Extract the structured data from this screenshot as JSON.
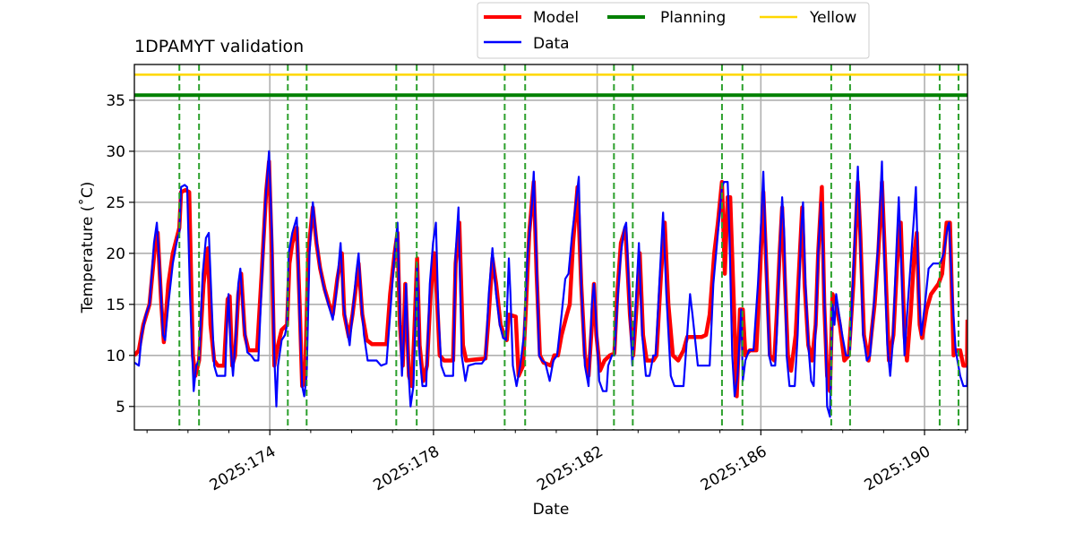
{
  "chart_data": {
    "type": "line",
    "title": "1DPAMYT validation",
    "xlabel": "Date",
    "ylabel": "Temperature ($^\\circ$C)",
    "ylabel_display": "Temperature (˚C)",
    "xlim": [
      170.69,
      191.05
    ],
    "ylim": [
      2.7,
      38.5
    ],
    "x_major_ticks": [
      174,
      178,
      182,
      186,
      190
    ],
    "x_tick_labels": [
      "2025:174",
      "2025:178",
      "2025:182",
      "2025:186",
      "2025:190"
    ],
    "x_minor_ticks": [
      171,
      172,
      173,
      175,
      176,
      177,
      179,
      180,
      181,
      183,
      184,
      185,
      187,
      188,
      189,
      191
    ],
    "y_ticks": [
      5,
      10,
      15,
      20,
      25,
      30,
      35
    ],
    "y_tick_labels": [
      "5",
      "10",
      "15",
      "20",
      "25",
      "30",
      "35"
    ],
    "grid": true,
    "legend": {
      "placement": "top-center-outside",
      "entries": [
        {
          "label": "Model",
          "color": "#ff0000"
        },
        {
          "label": "Planning",
          "color": "#008000"
        },
        {
          "label": "Yellow",
          "color": "#ffd700"
        },
        {
          "label": "Data",
          "color": "#0000ff"
        }
      ]
    },
    "hlines": [
      {
        "name": "Planning",
        "value": 35.5,
        "color": "#008000"
      },
      {
        "name": "Yellow",
        "value": 37.5,
        "color": "#ffd700"
      }
    ],
    "vlines": {
      "color": "#2ca02c",
      "values": [
        171.79,
        172.27,
        174.44,
        174.9,
        177.09,
        177.59,
        179.74,
        180.24,
        182.41,
        182.87,
        185.05,
        185.55,
        187.72,
        188.18,
        190.37,
        190.83
      ]
    },
    "series": [
      {
        "name": "Model",
        "color": "#ff0000",
        "x": [
          170.69,
          170.8,
          170.91,
          171.06,
          171.19,
          171.26,
          171.35,
          171.41,
          171.52,
          171.63,
          171.79,
          171.83,
          171.94,
          172.03,
          172.12,
          172.18,
          172.27,
          172.38,
          172.49,
          172.55,
          172.64,
          172.73,
          172.88,
          172.97,
          173.02,
          173.08,
          173.15,
          173.23,
          173.3,
          173.39,
          173.48,
          173.69,
          173.8,
          173.91,
          173.98,
          174.05,
          174.11,
          174.2,
          174.29,
          174.42,
          174.48,
          174.55,
          174.66,
          174.73,
          174.79,
          174.86,
          174.94,
          175.05,
          175.14,
          175.23,
          175.34,
          175.45,
          175.54,
          175.65,
          175.76,
          175.82,
          175.93,
          176.02,
          176.13,
          176.17,
          176.26,
          176.37,
          176.5,
          176.85,
          176.94,
          177.05,
          177.12,
          177.18,
          177.25,
          177.31,
          177.4,
          177.47,
          177.53,
          177.6,
          177.66,
          177.75,
          177.84,
          177.93,
          178.02,
          178.08,
          178.15,
          178.26,
          178.48,
          178.54,
          178.63,
          178.72,
          178.8,
          179.02,
          179.27,
          179.35,
          179.44,
          179.53,
          179.64,
          179.73,
          179.79,
          179.84,
          180.01,
          180.08,
          180.19,
          180.25,
          180.34,
          180.45,
          180.52,
          180.6,
          180.69,
          180.87,
          180.95,
          181.04,
          181.13,
          181.26,
          181.33,
          181.41,
          181.52,
          181.61,
          181.7,
          181.79,
          181.87,
          181.92,
          181.98,
          182.07,
          182.18,
          182.31,
          182.42,
          182.49,
          182.58,
          182.69,
          182.8,
          182.88,
          182.95,
          183.04,
          183.12,
          183.21,
          183.37,
          183.45,
          183.56,
          183.65,
          183.74,
          183.85,
          183.98,
          184.11,
          184.2,
          184.46,
          184.55,
          184.66,
          184.75,
          184.86,
          184.95,
          185.05,
          185.12,
          185.19,
          185.25,
          185.34,
          185.41,
          185.49,
          185.56,
          185.62,
          185.73,
          185.89,
          185.98,
          186.06,
          186.13,
          186.22,
          186.33,
          186.39,
          186.46,
          186.52,
          186.59,
          186.66,
          186.74,
          186.85,
          186.94,
          187.01,
          187.07,
          187.16,
          187.25,
          187.34,
          187.4,
          187.49,
          187.55,
          187.62,
          187.69,
          187.75,
          187.84,
          187.93,
          188.04,
          188.15,
          188.26,
          188.37,
          188.43,
          188.52,
          188.63,
          188.78,
          188.87,
          188.96,
          189.05,
          189.13,
          189.24,
          189.33,
          189.42,
          189.51,
          189.57,
          189.66,
          189.75,
          189.81,
          189.88,
          189.94,
          190.05,
          190.16,
          190.34,
          190.43,
          190.54,
          190.62,
          190.71,
          190.78,
          190.87,
          190.95,
          191.04,
          191.05
        ],
        "y": [
          10,
          10.5,
          13,
          15,
          20.5,
          22,
          15,
          11.3,
          17,
          20,
          22.5,
          26,
          26.2,
          26,
          10,
          8,
          9.5,
          17,
          20.5,
          13,
          9.5,
          9,
          9,
          15.5,
          15.8,
          9,
          10,
          16,
          18,
          12,
          10.5,
          10.5,
          18,
          26,
          29,
          20,
          9,
          11,
          12.5,
          13,
          19,
          21,
          22.5,
          15,
          7,
          7.5,
          20,
          24.5,
          21,
          18.5,
          16.5,
          15,
          14,
          17.5,
          20,
          14,
          11.8,
          14,
          17.5,
          19,
          14,
          11.5,
          11.1,
          11.1,
          16,
          20,
          22,
          13,
          9,
          17,
          8,
          7,
          12,
          19.5,
          11,
          7.5,
          9,
          16,
          20,
          16,
          10,
          9.5,
          9.5,
          19,
          23,
          11,
          9.5,
          9.6,
          9.7,
          14,
          19.5,
          17,
          13,
          12,
          11.5,
          14,
          13.8,
          8,
          9,
          14,
          22,
          27,
          18,
          10,
          9.3,
          9,
          10,
          10,
          12,
          14,
          15,
          21,
          26.5,
          17,
          10,
          8,
          13,
          17,
          12,
          8.5,
          9.5,
          10,
          10.2,
          16,
          21,
          22.5,
          14,
          10,
          14,
          20,
          12,
          9.5,
          9.5,
          10,
          18,
          23,
          15,
          10,
          9.5,
          10.5,
          11.8,
          11.8,
          11.8,
          12,
          14,
          20,
          23,
          27,
          18,
          25.5,
          25.5,
          15,
          6,
          14.5,
          14.5,
          10,
          10.5,
          10.5,
          18,
          26,
          19,
          10,
          9.5,
          14,
          20,
          24.5,
          17,
          10,
          8.5,
          12,
          19,
          24.5,
          17,
          11,
          9.5,
          13,
          20,
          26.5,
          15,
          8,
          6.5,
          16,
          15,
          13,
          9.5,
          10,
          17,
          27,
          22,
          12,
          9.5,
          15,
          20,
          27,
          18,
          9.5,
          12,
          19,
          23,
          12,
          9.5,
          14,
          20,
          22,
          13,
          11.7,
          14.5,
          16,
          17,
          18,
          23,
          23,
          10,
          10.5,
          10.5,
          9,
          9,
          13.5
        ]
      },
      {
        "name": "Data",
        "color": "#0000ff",
        "x": [
          170.69,
          170.8,
          170.87,
          170.97,
          171.06,
          171.17,
          171.24,
          171.3,
          171.39,
          171.44,
          171.52,
          171.63,
          171.74,
          171.79,
          171.83,
          171.92,
          171.98,
          172.05,
          172.14,
          172.2,
          172.27,
          172.36,
          172.44,
          172.51,
          172.58,
          172.64,
          172.71,
          172.84,
          172.91,
          172.95,
          172.99,
          173.04,
          173.1,
          173.17,
          173.23,
          173.28,
          173.37,
          173.45,
          173.54,
          173.63,
          173.72,
          173.8,
          173.89,
          173.98,
          174.05,
          174.11,
          174.16,
          174.2,
          174.29,
          174.37,
          174.42,
          174.46,
          174.55,
          174.66,
          174.73,
          174.79,
          174.84,
          174.9,
          174.97,
          175.05,
          175.12,
          175.21,
          175.3,
          175.43,
          175.54,
          175.62,
          175.73,
          175.8,
          175.89,
          175.95,
          176.02,
          176.11,
          176.17,
          176.24,
          176.3,
          176.39,
          176.61,
          176.72,
          176.85,
          176.94,
          177.03,
          177.12,
          177.18,
          177.23,
          177.29,
          177.33,
          177.38,
          177.44,
          177.51,
          177.6,
          177.66,
          177.73,
          177.82,
          177.91,
          177.99,
          178.06,
          178.12,
          178.19,
          178.28,
          178.48,
          178.54,
          178.61,
          178.69,
          178.78,
          178.85,
          179.02,
          179.18,
          179.27,
          179.35,
          179.44,
          179.53,
          179.62,
          179.7,
          179.77,
          179.84,
          179.88,
          179.94,
          180.03,
          180.12,
          180.21,
          180.3,
          180.41,
          180.45,
          180.52,
          180.58,
          180.65,
          180.73,
          180.84,
          180.93,
          181.02,
          181.13,
          181.22,
          181.3,
          181.39,
          181.48,
          181.55,
          181.61,
          181.7,
          181.79,
          181.87,
          181.92,
          181.98,
          182.05,
          182.14,
          182.23,
          182.27,
          182.36,
          182.42,
          182.49,
          182.58,
          182.66,
          182.71,
          182.8,
          182.86,
          182.93,
          183.02,
          183.1,
          183.19,
          183.28,
          183.37,
          183.43,
          183.52,
          183.61,
          183.69,
          183.8,
          183.89,
          184.11,
          184.2,
          184.27,
          184.33,
          184.46,
          184.66,
          184.75,
          184.84,
          184.95,
          185.05,
          185.1,
          185.19,
          185.23,
          185.3,
          185.36,
          185.43,
          185.52,
          185.56,
          185.62,
          185.71,
          185.82,
          185.93,
          186.02,
          186.06,
          186.13,
          186.2,
          186.26,
          186.35,
          186.39,
          186.46,
          186.52,
          186.57,
          186.63,
          186.7,
          186.83,
          186.9,
          186.98,
          187.03,
          187.09,
          187.16,
          187.23,
          187.29,
          187.36,
          187.4,
          187.47,
          187.51,
          187.58,
          187.62,
          187.69,
          187.75,
          187.8,
          187.84,
          187.91,
          187.99,
          188.08,
          188.17,
          188.28,
          188.37,
          188.41,
          188.5,
          188.59,
          188.67,
          188.78,
          188.87,
          188.96,
          189.02,
          189.09,
          189.16,
          189.22,
          189.31,
          189.37,
          189.44,
          189.51,
          189.59,
          189.68,
          189.75,
          189.79,
          189.86,
          189.92,
          190.01,
          190.1,
          190.21,
          190.38,
          190.47,
          190.56,
          190.6,
          190.69,
          190.76,
          190.87,
          190.95,
          191.04,
          191.05
        ],
        "y": [
          9.3,
          9,
          12,
          14,
          15,
          21,
          23,
          19,
          12,
          11.5,
          15,
          19,
          21.5,
          22,
          26.5,
          26.7,
          26.5,
          16,
          6.5,
          9,
          9.5,
          18,
          21.5,
          22,
          15,
          9,
          8,
          8,
          8,
          13,
          16,
          11,
          8,
          12,
          17,
          18.5,
          13,
          10.3,
          10,
          9.5,
          9.5,
          17,
          25,
          30,
          22,
          10,
          5,
          9,
          11.5,
          12,
          13,
          20,
          22,
          23.5,
          14,
          7,
          6,
          8,
          20,
          25,
          22,
          19,
          17,
          15,
          13.5,
          16,
          21,
          15,
          12.5,
          11,
          14,
          18,
          20,
          15,
          12,
          9.5,
          9.5,
          9,
          9.2,
          14,
          19,
          23,
          14,
          8,
          13,
          17,
          9,
          5,
          7,
          19,
          10,
          7,
          7,
          17,
          21,
          23,
          14,
          9,
          8,
          8,
          20,
          24.5,
          10,
          7.5,
          9,
          9.2,
          9.2,
          9.7,
          16,
          20.5,
          16,
          13,
          11.7,
          11.5,
          19.5,
          16,
          9,
          7,
          9,
          12,
          20,
          25,
          28,
          19,
          10,
          9.5,
          9.3,
          7.5,
          9.5,
          10,
          14,
          17.5,
          18,
          22,
          25,
          27.5,
          17,
          9,
          7,
          15,
          17,
          13,
          7.5,
          6.5,
          6.5,
          9,
          10,
          10,
          15,
          20,
          22.5,
          23,
          14,
          9,
          14,
          21,
          12,
          8,
          8,
          10,
          10,
          17,
          24,
          16,
          8,
          7,
          7,
          12,
          16,
          14,
          9,
          9,
          9,
          17,
          22,
          26.5,
          27,
          27,
          22,
          10,
          6,
          8,
          14.5,
          7.5,
          9.5,
          10.5,
          10.5,
          17,
          24,
          28,
          19,
          10,
          9,
          9,
          12,
          20,
          25.5,
          22,
          10,
          7,
          7,
          12,
          22,
          25,
          17,
          11,
          7.5,
          7,
          15,
          20,
          25,
          21,
          12,
          5,
          4,
          15,
          13,
          16,
          14,
          12,
          10,
          10,
          20,
          28.5,
          24,
          12,
          9.5,
          10,
          16,
          21,
          29,
          19,
          11,
          8,
          11,
          20,
          25.5,
          18,
          10,
          15,
          20,
          24,
          26.5,
          16,
          12,
          15,
          18.5,
          19,
          19,
          20,
          22.5,
          23,
          15,
          10.5,
          8,
          7,
          7,
          9
        ]
      }
    ]
  }
}
